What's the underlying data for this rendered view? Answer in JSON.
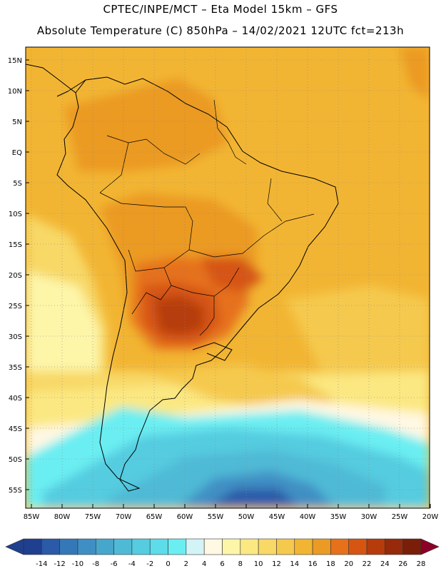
{
  "header": {
    "line1": "CPTEC/INPE/MCT  –   Eta Model 15km  –  GFS",
    "line2": "Absolute Temperature (C) 850hPa  –  14/02/2021  12UTC  fct=213h"
  },
  "map": {
    "lat_labels": [
      "15N",
      "10N",
      "5N",
      "EQ",
      "5S",
      "10S",
      "15S",
      "20S",
      "25S",
      "30S",
      "35S",
      "40S",
      "45S",
      "50S",
      "55S"
    ],
    "lon_labels": [
      "85W",
      "80W",
      "75W",
      "70W",
      "65W",
      "60W",
      "55W",
      "50W",
      "45W",
      "40W",
      "35W",
      "30W",
      "25W",
      "20W"
    ],
    "lat_values": [
      15,
      10,
      5,
      0,
      -5,
      -10,
      -15,
      -20,
      -25,
      -30,
      -35,
      -40,
      -45,
      -50,
      -55
    ],
    "lon_values": [
      -85,
      -80,
      -75,
      -70,
      -65,
      -60,
      -55,
      -50,
      -45,
      -40,
      -35,
      -30,
      -25,
      -20
    ]
  },
  "colorbar": {
    "labels": [
      "-14",
      "-12",
      "-10",
      "-8",
      "-6",
      "-4",
      "-2",
      "0",
      "2",
      "4",
      "6",
      "8",
      "10",
      "12",
      "14",
      "16",
      "18",
      "20",
      "22",
      "24",
      "26",
      "28"
    ],
    "colors": [
      "#1f3f8f",
      "#2a5aa8",
      "#3578b8",
      "#3f8fc4",
      "#47a6cc",
      "#4fbad6",
      "#55cce0",
      "#5ddcea",
      "#6aeef2",
      "#d3f4f7",
      "#fff8e3",
      "#fdf5a8",
      "#fbe882",
      "#f8d866",
      "#f5c94e",
      "#f2b533",
      "#eb9a24",
      "#e6711a",
      "#d65512",
      "#b63c0c",
      "#962a0a",
      "#7a1e0a",
      "#8b0028"
    ]
  }
}
